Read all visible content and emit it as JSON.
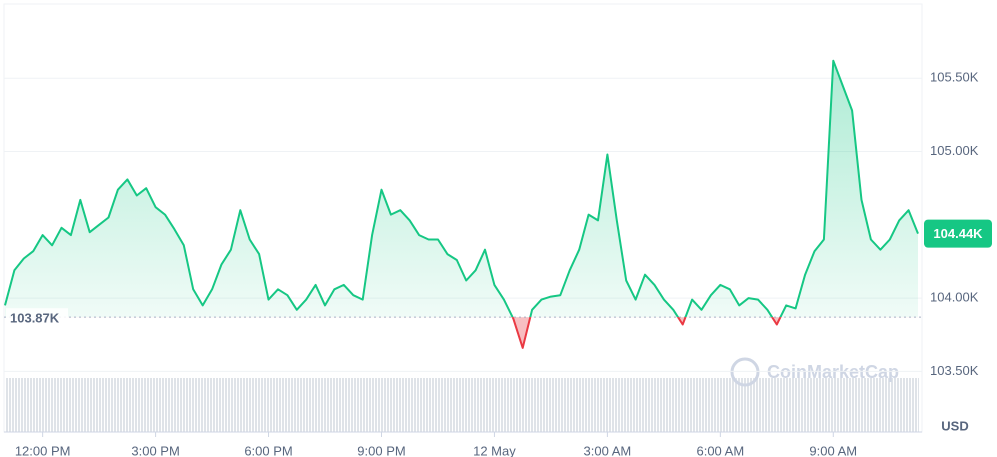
{
  "chart_data": {
    "type": "line",
    "values": [
      103.95,
      104.19,
      104.27,
      104.32,
      104.43,
      104.36,
      104.48,
      104.43,
      104.67,
      104.45,
      104.5,
      104.55,
      104.74,
      104.81,
      104.7,
      104.75,
      104.62,
      104.57,
      104.47,
      104.36,
      104.06,
      103.95,
      104.06,
      104.23,
      104.33,
      104.6,
      104.4,
      104.3,
      103.99,
      104.06,
      104.02,
      103.92,
      103.99,
      104.09,
      103.95,
      104.06,
      104.09,
      104.02,
      103.99,
      104.43,
      104.74,
      104.57,
      104.6,
      104.53,
      104.43,
      104.4,
      104.4,
      104.3,
      104.26,
      104.12,
      104.19,
      104.33,
      104.09,
      103.99,
      103.86,
      103.66,
      103.92,
      103.99,
      104.01,
      104.02,
      104.19,
      104.33,
      104.57,
      104.53,
      104.98,
      104.53,
      104.12,
      103.99,
      104.16,
      104.09,
      103.99,
      103.92,
      103.82,
      103.99,
      103.92,
      104.02,
      104.09,
      104.06,
      103.95,
      104.0,
      103.99,
      103.92,
      103.82,
      103.95,
      103.93,
      104.16,
      104.32,
      104.4,
      105.62,
      105.45,
      105.28,
      104.67,
      104.4,
      104.33,
      104.4,
      104.53,
      104.6,
      104.44
    ],
    "xlim": [
      0,
      97
    ],
    "xticks": [
      {
        "value": 4,
        "label": "12:00 PM"
      },
      {
        "value": 16,
        "label": "3:00 PM"
      },
      {
        "value": 28,
        "label": "6:00 PM"
      },
      {
        "value": 40,
        "label": "9:00 PM"
      },
      {
        "value": 52,
        "label": "12 May"
      },
      {
        "value": 64,
        "label": "3:00 AM"
      },
      {
        "value": 76,
        "label": "6:00 AM"
      },
      {
        "value": 88,
        "label": "9:00 AM"
      }
    ],
    "ylim": [
      103.1,
      106.0
    ],
    "yticks": [
      {
        "value": 103.5,
        "label": "103.50K"
      },
      {
        "value": 104.0,
        "label": "104.00K"
      },
      {
        "value": 105.0,
        "label": "105.00K"
      },
      {
        "value": 105.5,
        "label": "105.50K"
      }
    ],
    "baseline": {
      "value": 103.87,
      "label": "103.87K"
    },
    "current": {
      "value": 104.44,
      "label": "104.44K"
    },
    "currency": "USD",
    "watermark": "CoinMarketCap",
    "up_color": "#16c784",
    "down_color": "#ea3943",
    "grid": true
  }
}
